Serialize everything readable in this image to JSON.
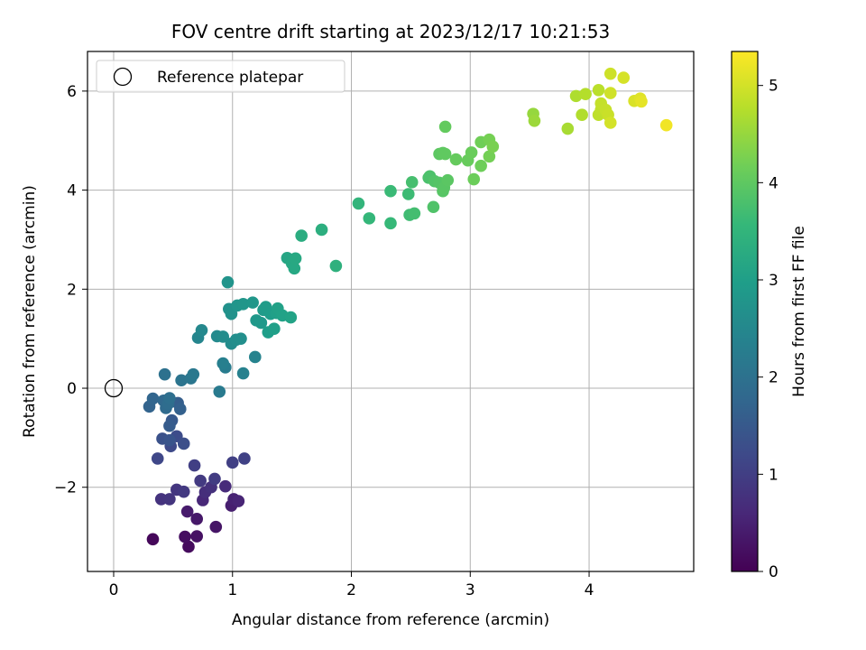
{
  "chart_data": {
    "type": "scatter",
    "title": "FOV centre drift starting at 2023/12/17 10:21:53",
    "xlabel": "Angular distance from reference (arcmin)",
    "ylabel": "Rotation from reference (arcmin)",
    "xlim": [
      -0.22,
      4.88
    ],
    "ylim": [
      -3.7,
      6.8
    ],
    "x_ticks": [
      0,
      1,
      2,
      3,
      4
    ],
    "y_ticks": [
      -2,
      0,
      2,
      4,
      6
    ],
    "x_tick_labels": [
      "0",
      "1",
      "2",
      "3",
      "4"
    ],
    "y_tick_labels": [
      "−2",
      "0",
      "2",
      "4",
      "6"
    ],
    "grid": true,
    "legend": {
      "position": "top-left",
      "label": "Reference platepar",
      "marker": "open-circle"
    },
    "reference_point": {
      "x": 0,
      "y": 0
    },
    "colorbar": {
      "label": "Hours from first FF file",
      "range": [
        0,
        5.35
      ],
      "ticks": [
        0,
        1,
        2,
        3,
        4,
        5
      ],
      "tick_labels": [
        "0",
        "1",
        "2",
        "3",
        "4",
        "5"
      ],
      "colormap": "viridis"
    },
    "series": [
      {
        "points": [
          [
            0.33,
            -3.05,
            0.1
          ],
          [
            0.63,
            -3.2,
            0.15
          ],
          [
            0.6,
            -3.0,
            0.2
          ],
          [
            0.7,
            -2.99,
            0.25
          ],
          [
            0.86,
            -2.8,
            0.3
          ],
          [
            0.7,
            -2.64,
            0.35
          ],
          [
            0.62,
            -2.49,
            0.4
          ],
          [
            0.99,
            -2.37,
            0.45
          ],
          [
            1.01,
            -2.24,
            0.5
          ],
          [
            1.05,
            -2.28,
            0.55
          ],
          [
            0.75,
            -2.26,
            0.6
          ],
          [
            0.94,
            -1.98,
            0.65
          ],
          [
            0.77,
            -2.1,
            0.7
          ],
          [
            0.82,
            -2.0,
            0.75
          ],
          [
            0.4,
            -2.24,
            0.8
          ],
          [
            0.47,
            -2.24,
            0.82
          ],
          [
            0.53,
            -2.05,
            0.85
          ],
          [
            0.59,
            -2.09,
            0.9
          ],
          [
            0.73,
            -1.87,
            0.92
          ],
          [
            0.85,
            -1.83,
            0.95
          ],
          [
            0.68,
            -1.56,
            1.0
          ],
          [
            1.0,
            -1.5,
            1.03
          ],
          [
            1.1,
            -1.42,
            1.05
          ],
          [
            0.37,
            -1.42,
            1.15
          ],
          [
            0.48,
            -1.17,
            1.2
          ],
          [
            0.53,
            -0.97,
            1.25
          ],
          [
            0.59,
            -1.12,
            1.3
          ],
          [
            0.41,
            -1.02,
            1.35
          ],
          [
            0.47,
            -1.05,
            1.4
          ],
          [
            0.49,
            -0.65,
            1.5
          ],
          [
            0.47,
            -0.76,
            1.55
          ],
          [
            0.54,
            -0.3,
            1.6
          ],
          [
            0.56,
            -0.42,
            1.65
          ],
          [
            0.3,
            -0.37,
            1.7
          ],
          [
            0.33,
            -0.21,
            1.75
          ],
          [
            0.42,
            -0.25,
            1.8
          ],
          [
            0.44,
            -0.4,
            1.85
          ],
          [
            0.46,
            -0.31,
            1.9
          ],
          [
            0.47,
            -0.2,
            1.95
          ],
          [
            0.43,
            0.28,
            2.0
          ],
          [
            0.57,
            0.16,
            2.05
          ],
          [
            0.65,
            0.2,
            2.1
          ],
          [
            0.67,
            0.28,
            2.15
          ],
          [
            0.89,
            -0.07,
            2.2
          ],
          [
            0.94,
            0.42,
            2.25
          ],
          [
            0.92,
            0.5,
            2.3
          ],
          [
            1.09,
            0.3,
            2.35
          ],
          [
            1.19,
            0.63,
            2.4
          ],
          [
            0.71,
            1.02,
            2.45
          ],
          [
            0.74,
            1.17,
            2.5
          ],
          [
            0.87,
            1.05,
            2.55
          ],
          [
            0.92,
            1.04,
            2.58
          ],
          [
            0.99,
            0.9,
            2.6
          ],
          [
            1.03,
            0.98,
            2.63
          ],
          [
            1.07,
            1.0,
            2.65
          ],
          [
            0.96,
            2.14,
            2.75
          ],
          [
            0.97,
            1.6,
            2.7
          ],
          [
            0.99,
            1.5,
            2.72
          ],
          [
            1.04,
            1.67,
            2.78
          ],
          [
            1.09,
            1.7,
            2.8
          ],
          [
            1.17,
            1.73,
            2.82
          ],
          [
            1.2,
            1.37,
            2.85
          ],
          [
            1.24,
            1.32,
            2.87
          ],
          [
            1.26,
            1.58,
            2.9
          ],
          [
            1.28,
            1.64,
            2.92
          ],
          [
            1.32,
            1.5,
            2.95
          ],
          [
            1.3,
            1.13,
            2.97
          ],
          [
            1.35,
            1.2,
            3.0
          ],
          [
            1.37,
            1.52,
            3.02
          ],
          [
            1.38,
            1.61,
            3.04
          ],
          [
            1.42,
            1.47,
            3.06
          ],
          [
            1.49,
            1.43,
            3.08
          ],
          [
            1.46,
            2.63,
            3.15
          ],
          [
            1.5,
            2.52,
            3.18
          ],
          [
            1.52,
            2.42,
            3.2
          ],
          [
            1.53,
            2.62,
            3.22
          ],
          [
            1.58,
            3.08,
            3.3
          ],
          [
            1.75,
            3.2,
            3.35
          ],
          [
            1.87,
            2.47,
            3.4
          ],
          [
            2.06,
            3.73,
            3.5
          ],
          [
            2.15,
            3.43,
            3.55
          ],
          [
            2.33,
            3.33,
            3.58
          ],
          [
            2.33,
            3.98,
            3.62
          ],
          [
            2.48,
            3.92,
            3.65
          ],
          [
            2.49,
            3.5,
            3.68
          ],
          [
            2.53,
            3.53,
            3.72
          ],
          [
            2.51,
            4.16,
            3.75
          ],
          [
            2.65,
            4.25,
            3.8
          ],
          [
            2.66,
            4.28,
            3.82
          ],
          [
            2.69,
            3.66,
            3.85
          ],
          [
            2.7,
            4.18,
            3.87
          ],
          [
            2.74,
            4.15,
            3.9
          ],
          [
            2.77,
            3.98,
            3.92
          ],
          [
            2.78,
            4.05,
            3.94
          ],
          [
            2.81,
            4.2,
            3.96
          ],
          [
            2.74,
            4.73,
            3.98
          ],
          [
            2.77,
            4.75,
            4.0
          ],
          [
            2.79,
            4.73,
            4.02
          ],
          [
            2.79,
            5.28,
            4.05
          ],
          [
            2.88,
            4.62,
            4.07
          ],
          [
            2.98,
            4.6,
            4.09
          ],
          [
            3.01,
            4.76,
            4.11
          ],
          [
            3.03,
            4.22,
            4.13
          ],
          [
            3.09,
            4.49,
            4.15
          ],
          [
            3.09,
            4.97,
            4.17
          ],
          [
            3.16,
            4.68,
            4.2
          ],
          [
            3.16,
            5.02,
            4.22
          ],
          [
            3.19,
            4.88,
            4.25
          ],
          [
            3.53,
            5.54,
            4.5
          ],
          [
            3.54,
            5.4,
            4.55
          ],
          [
            3.82,
            5.24,
            4.65
          ],
          [
            3.89,
            5.9,
            4.7
          ],
          [
            3.94,
            5.52,
            4.72
          ],
          [
            3.97,
            5.94,
            4.75
          ],
          [
            4.08,
            6.02,
            4.8
          ],
          [
            4.08,
            5.52,
            4.83
          ],
          [
            4.1,
            5.62,
            4.85
          ],
          [
            4.1,
            5.75,
            4.88
          ],
          [
            4.14,
            5.62,
            4.9
          ],
          [
            4.16,
            5.52,
            4.92
          ],
          [
            4.18,
            6.35,
            4.95
          ],
          [
            4.18,
            5.96,
            4.97
          ],
          [
            4.18,
            5.36,
            5.0
          ],
          [
            4.29,
            6.27,
            5.02
          ],
          [
            4.38,
            5.8,
            5.05
          ],
          [
            4.43,
            5.85,
            5.1
          ],
          [
            4.44,
            5.79,
            5.15
          ],
          [
            4.65,
            5.31,
            5.25
          ]
        ]
      }
    ]
  }
}
